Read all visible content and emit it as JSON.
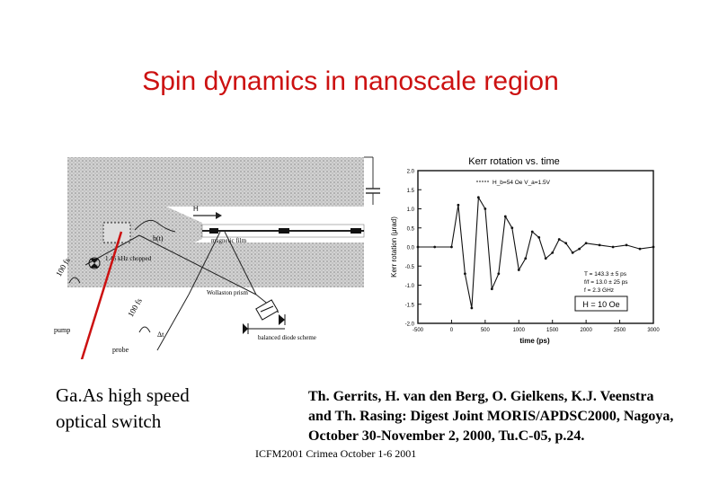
{
  "slide": {
    "title": "Spin dynamics in nanoscale region",
    "caption": [
      "Ga.As high speed",
      "optical switch"
    ],
    "reference": "Th. Gerrits, H. van den Berg, O. Gielkens, K.J. Veenstra and Th. Rasing: Digest Joint MORIS/APDSC2000, Nagoya, October 30-November 2, 2000, Tu.C-05, p.24.",
    "footer": "ICFM2001 Crimea October 1-6 2001"
  },
  "setup_diagram": {
    "labels": {
      "field": "H",
      "pulse_field": "h(t)",
      "film": "magnetic film",
      "chopper": "1.45 kHz chopped",
      "pulse_length_pump": "100 fs",
      "pulse_length_probe": "100 fs",
      "prism": "Wollaston prism",
      "detector": "balanced diode scheme",
      "pump": "pump",
      "probe": "probe",
      "delay": "Δt"
    }
  },
  "chart_data": {
    "type": "line",
    "title": "Kerr rotation vs. time",
    "xlabel": "time (ps)",
    "ylabel": "Kerr rotation (μrad)",
    "xlim": [
      -500,
      3000
    ],
    "ylim": [
      -2.0,
      2.0
    ],
    "xticks": [
      "-500",
      "0",
      "500",
      "1000",
      "1500",
      "2000",
      "2500",
      "3000"
    ],
    "yticks": [
      "2.0",
      "1.5",
      "1.0",
      "0.5",
      "0.0",
      "-0.5",
      "-1.0",
      "-1.5",
      "-2.0"
    ],
    "legend": "H_b=54 Oe V_a=1.5V",
    "field_label": "H = 10 Oe",
    "fit_params": [
      "T = 143.3 ± 5 ps",
      "f/f = 13.0 ± 25 ps",
      "f = 2.3 GHz"
    ],
    "series": [
      {
        "name": "H_b=54 Oe V_a=1.5V",
        "x": [
          -500,
          -250,
          0,
          100,
          200,
          300,
          400,
          500,
          600,
          700,
          800,
          900,
          1000,
          1100,
          1200,
          1300,
          1400,
          1500,
          1600,
          1700,
          1800,
          1900,
          2000,
          2200,
          2400,
          2600,
          2800,
          3000
        ],
        "values": [
          0,
          0,
          0,
          1.1,
          -0.7,
          -1.6,
          1.3,
          1.0,
          -1.1,
          -0.7,
          0.8,
          0.5,
          -0.6,
          -0.3,
          0.4,
          0.25,
          -0.3,
          -0.15,
          0.2,
          0.1,
          -0.15,
          -0.05,
          0.1,
          0.05,
          0.0,
          0.05,
          -0.05,
          0.0
        ]
      }
    ]
  },
  "colors": {
    "title": "#cc1111",
    "arrow": "#cc1111"
  }
}
